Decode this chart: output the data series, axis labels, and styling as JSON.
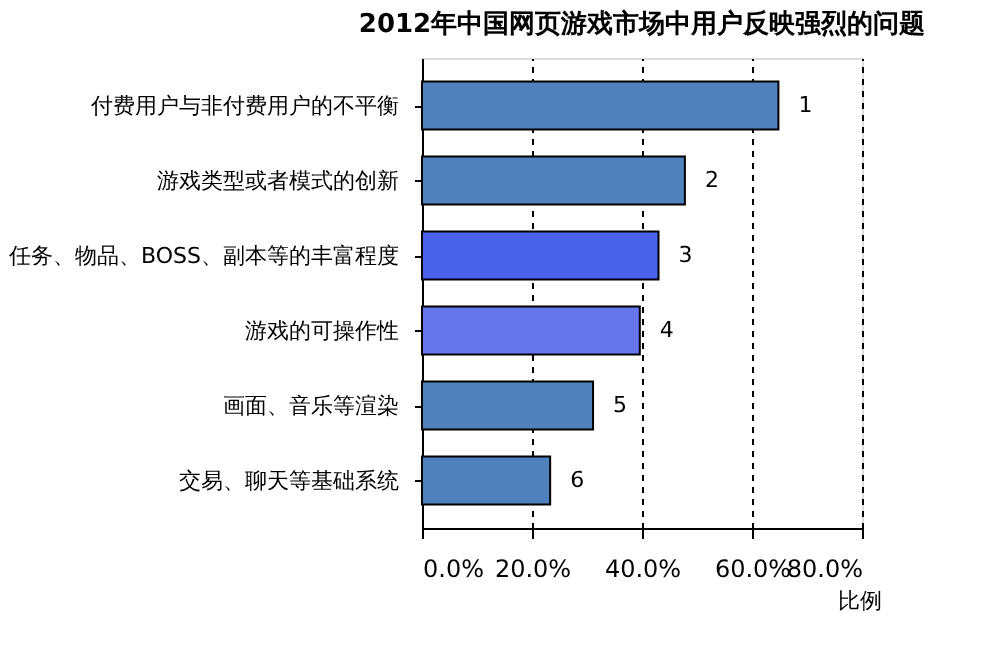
{
  "chart_data": {
    "type": "bar",
    "orientation": "horizontal",
    "title": "2012年中国网页游戏市场中用户反映强烈的问题",
    "xlabel": "比例",
    "categories": [
      "付费用户与非付费用户的不平衡",
      "游戏类型或者模式的创新",
      "任务、物品、BOSS、副本等的丰富程度",
      "游戏的可操作性",
      "画面、音乐等渲染",
      "交易、聊天等基础系统"
    ],
    "values": [
      64.8,
      47.8,
      43.0,
      39.6,
      31.1,
      23.3
    ],
    "colors": [
      "#4f81bd",
      "#4f81bd",
      "#4a62ea",
      "#6677ee",
      "#4f81bd",
      "#4f81bd"
    ],
    "annotations": [
      {
        "text": "1",
        "x": 64.8,
        "y": "付费用户与非付费用户的不平衡"
      },
      {
        "text": "2",
        "x": 47.8,
        "y": "游戏类型或者模式的创新"
      },
      {
        "text": "3",
        "x": 43.0,
        "y": "任务、物品、BOSS、副本等的丰富程度"
      },
      {
        "text": "4",
        "x": 39.6,
        "y": "游戏的可操作性"
      },
      {
        "text": "5",
        "x": 31.1,
        "y": "画面、音乐等渲染"
      },
      {
        "text": "6",
        "x": 23.3,
        "y": "交易、聊天等基础系统"
      }
    ],
    "xlim": [
      0,
      80
    ],
    "xticks": [
      {
        "value": 0,
        "label": "0.0%"
      },
      {
        "value": 20,
        "label": "20.0%"
      },
      {
        "value": 40,
        "label": "40.0%"
      },
      {
        "value": 60,
        "label": "60.0%"
      },
      {
        "value": 80,
        "label": "80.0%"
      }
    ],
    "grid": "x"
  }
}
